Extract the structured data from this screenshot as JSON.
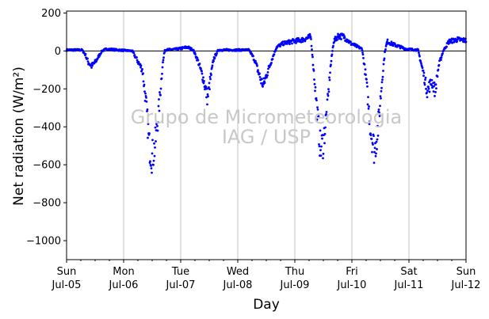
{
  "chart_data": {
    "type": "scatter",
    "title": "",
    "xlabel": "Day",
    "ylabel": "Net radiation (W/m²)",
    "watermark": [
      "Grupo de Micrometeorologia",
      "IAG / USP"
    ],
    "ylim": [
      -1100,
      210
    ],
    "yticks": [
      200,
      0,
      -200,
      -400,
      -600,
      -800,
      -1000
    ],
    "ytick_labels": [
      "200",
      "0",
      "−200",
      "−400",
      "−600",
      "−800",
      "−1000"
    ],
    "xlim": [
      0,
      7
    ],
    "xticks": [
      {
        "day": "Sun",
        "date": "Jul-05"
      },
      {
        "day": "Mon",
        "date": "Jul-06"
      },
      {
        "day": "Tue",
        "date": "Jul-07"
      },
      {
        "day": "Wed",
        "date": "Jul-08"
      },
      {
        "day": "Thu",
        "date": "Jul-09"
      },
      {
        "day": "Fri",
        "date": "Jul-10"
      },
      {
        "day": "Sat",
        "date": "Jul-11"
      },
      {
        "day": "Sun",
        "date": "Jul-12"
      }
    ],
    "grid": "vertical",
    "zero_line": true,
    "color": "#0000ff",
    "series": [
      {
        "name": "",
        "x_units": "days since Sun Jul-05 00:00",
        "profile": [
          [
            0.0,
            5
          ],
          [
            0.27,
            5
          ],
          [
            0.33,
            -20
          ],
          [
            0.38,
            -60
          ],
          [
            0.44,
            -80
          ],
          [
            0.5,
            -60
          ],
          [
            0.56,
            -30
          ],
          [
            0.62,
            0
          ],
          [
            0.7,
            10
          ],
          [
            0.9,
            5
          ],
          [
            1.15,
            0
          ],
          [
            1.33,
            -100
          ],
          [
            1.4,
            -300
          ],
          [
            1.45,
            -500
          ],
          [
            1.5,
            -560
          ],
          [
            1.55,
            -500
          ],
          [
            1.62,
            -300
          ],
          [
            1.68,
            -80
          ],
          [
            1.72,
            5
          ],
          [
            1.95,
            10
          ],
          [
            2.12,
            20
          ],
          [
            2.22,
            5
          ],
          [
            2.3,
            -50
          ],
          [
            2.4,
            -150
          ],
          [
            2.47,
            -250
          ],
          [
            2.52,
            -150
          ],
          [
            2.58,
            -40
          ],
          [
            2.66,
            5
          ],
          [
            3.2,
            5
          ],
          [
            3.3,
            -50
          ],
          [
            3.4,
            -150
          ],
          [
            3.45,
            -180
          ],
          [
            3.5,
            -130
          ],
          [
            3.58,
            -60
          ],
          [
            3.68,
            20
          ],
          [
            3.8,
            40
          ],
          [
            3.95,
            50
          ],
          [
            4.15,
            60
          ],
          [
            4.28,
            75
          ],
          [
            4.33,
            -100
          ],
          [
            4.4,
            -350
          ],
          [
            4.45,
            -520
          ],
          [
            4.5,
            -480
          ],
          [
            4.57,
            -300
          ],
          [
            4.62,
            -100
          ],
          [
            4.68,
            50
          ],
          [
            4.76,
            80
          ],
          [
            4.86,
            75
          ],
          [
            4.98,
            40
          ],
          [
            5.18,
            10
          ],
          [
            5.25,
            -150
          ],
          [
            5.33,
            -420
          ],
          [
            5.4,
            -530
          ],
          [
            5.46,
            -400
          ],
          [
            5.53,
            -150
          ],
          [
            5.58,
            0
          ],
          [
            5.62,
            50
          ],
          [
            5.72,
            35
          ],
          [
            5.95,
            10
          ],
          [
            6.16,
            5
          ],
          [
            6.24,
            -100
          ],
          [
            6.32,
            -210
          ],
          [
            6.4,
            -160
          ],
          [
            6.46,
            -210
          ],
          [
            6.52,
            -80
          ],
          [
            6.6,
            0
          ],
          [
            6.7,
            50
          ],
          [
            6.85,
            60
          ],
          [
            7.0,
            55
          ]
        ]
      }
    ]
  }
}
